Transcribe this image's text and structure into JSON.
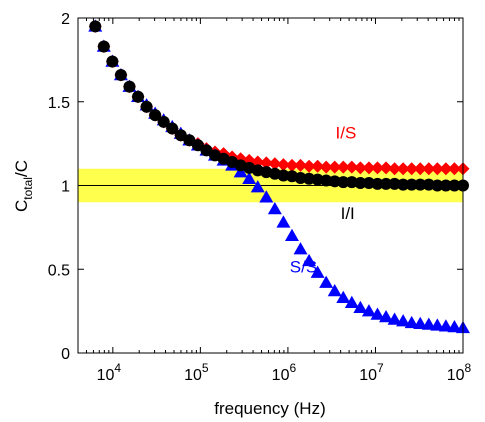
{
  "chart_data": {
    "type": "scatter",
    "x_scale": "log",
    "xlabel": "frequency (Hz)",
    "ylabel_main": "C",
    "ylabel_sub": "total",
    "ylabel_tail": "/C",
    "xlim": [
      4000,
      100000000
    ],
    "ylim": [
      0,
      2
    ],
    "x_ticks": [
      {
        "value": 10000,
        "base": "10",
        "exp": "4"
      },
      {
        "value": 100000,
        "base": "10",
        "exp": "5"
      },
      {
        "value": 1000000,
        "base": "10",
        "exp": "6"
      },
      {
        "value": 10000000,
        "base": "10",
        "exp": "7"
      },
      {
        "value": 100000000,
        "base": "10",
        "exp": "8"
      }
    ],
    "y_ticks": [
      {
        "value": 0,
        "label": "0"
      },
      {
        "value": 0.5,
        "label": "0.5"
      },
      {
        "value": 1,
        "label": "1"
      },
      {
        "value": 1.5,
        "label": "1.5"
      },
      {
        "value": 2,
        "label": "2"
      }
    ],
    "band": {
      "y0": 0.9,
      "y1": 1.1,
      "color": "#ffff4d"
    },
    "reference_line": {
      "y": 1,
      "color": "#000000"
    },
    "grid": false,
    "x_range_points": [
      6300,
      100000000
    ],
    "n_points": 44,
    "series": [
      {
        "name": "I/S",
        "marker": "diamond",
        "color": "#ff0000",
        "values": [
          1.95,
          1.83,
          1.74,
          1.66,
          1.59,
          1.53,
          1.47,
          1.42,
          1.38,
          1.34,
          1.3,
          1.27,
          1.25,
          1.22,
          1.2,
          1.19,
          1.17,
          1.16,
          1.15,
          1.14,
          1.135,
          1.13,
          1.125,
          1.12,
          1.12,
          1.115,
          1.115,
          1.11,
          1.11,
          1.11,
          1.11,
          1.105,
          1.105,
          1.105,
          1.105,
          1.1,
          1.1,
          1.1,
          1.1,
          1.1,
          1.1,
          1.1,
          1.1,
          1.1
        ]
      },
      {
        "name": "I/I",
        "marker": "circle",
        "color": "#000000",
        "values": [
          1.95,
          1.83,
          1.74,
          1.66,
          1.59,
          1.53,
          1.47,
          1.42,
          1.38,
          1.34,
          1.3,
          1.27,
          1.24,
          1.21,
          1.18,
          1.16,
          1.14,
          1.12,
          1.105,
          1.09,
          1.08,
          1.07,
          1.06,
          1.055,
          1.045,
          1.04,
          1.035,
          1.03,
          1.025,
          1.02,
          1.02,
          1.015,
          1.015,
          1.01,
          1.01,
          1.01,
          1.005,
          1.005,
          1.005,
          1.005,
          1.0,
          1.0,
          1.0,
          1.0
        ]
      },
      {
        "name": "S/S",
        "marker": "triangle",
        "color": "#0000ff",
        "values": [
          1.95,
          1.83,
          1.74,
          1.66,
          1.59,
          1.53,
          1.48,
          1.43,
          1.39,
          1.35,
          1.31,
          1.27,
          1.24,
          1.21,
          1.18,
          1.15,
          1.12,
          1.08,
          1.04,
          0.99,
          0.93,
          0.86,
          0.78,
          0.7,
          0.62,
          0.55,
          0.48,
          0.42,
          0.37,
          0.33,
          0.3,
          0.27,
          0.25,
          0.23,
          0.215,
          0.2,
          0.19,
          0.18,
          0.175,
          0.17,
          0.165,
          0.16,
          0.155,
          0.15
        ]
      }
    ],
    "annotations": [
      {
        "text": "I/S",
        "color": "#ff0000",
        "x": 3500000,
        "y": 1.28
      },
      {
        "text": "I/I",
        "color": "#000000",
        "x": 4000000,
        "y": 0.8
      },
      {
        "text": "S/S",
        "color": "#0000ff",
        "x": 1050000,
        "y": 0.48
      }
    ]
  }
}
